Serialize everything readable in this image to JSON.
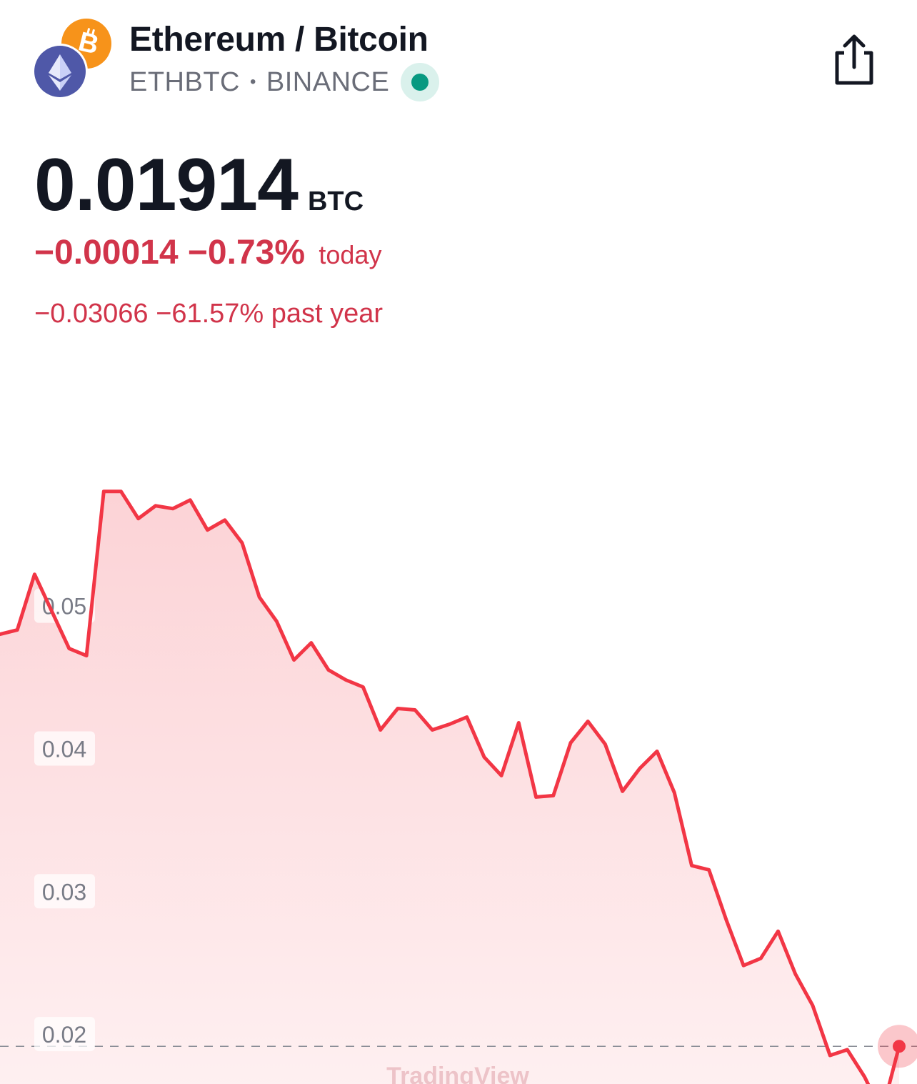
{
  "header": {
    "title": "Ethereum / Bitcoin",
    "symbol": "ETHBTC",
    "separator": "•",
    "exchange": "BINANCE",
    "logos": [
      "ethereum-logo",
      "bitcoin-logo"
    ],
    "market_status_color": "#089981"
  },
  "quote": {
    "price": "0.01914",
    "currency": "BTC",
    "today_change_abs": "−0.00014",
    "today_change_pct": "−0.73%",
    "today_label": "today",
    "year_change_abs": "−0.03066",
    "year_change_pct": "−61.57%",
    "year_label": "past year",
    "negative_color": "#d1344a"
  },
  "icons": {
    "share": "share-icon"
  },
  "watermark": "TradingView",
  "chart_data": {
    "type": "area",
    "ylim": [
      0.0165,
      0.0684
    ],
    "y_ticks": [
      "0.05",
      "0.04",
      "0.03",
      "0.02"
    ],
    "y_tick_values": [
      0.05,
      0.04,
      0.03,
      0.02
    ],
    "reference_line": 0.01914,
    "line_color": "#f23645",
    "grid": false,
    "values": [
      0.048,
      0.0483,
      0.0522,
      0.0496,
      0.047,
      0.0465,
      0.058,
      0.058,
      0.0561,
      0.057,
      0.0568,
      0.0574,
      0.0553,
      0.056,
      0.0544,
      0.0506,
      0.0489,
      0.0462,
      0.0474,
      0.0455,
      0.0448,
      0.0443,
      0.0413,
      0.0428,
      0.0427,
      0.0413,
      0.0417,
      0.0422,
      0.0394,
      0.0381,
      0.0418,
      0.0366,
      0.0367,
      0.0404,
      0.0419,
      0.0403,
      0.037,
      0.0386,
      0.0398,
      0.0369,
      0.0318,
      0.0315,
      0.028,
      0.0248,
      0.0253,
      0.0272,
      0.0242,
      0.022,
      0.0185,
      0.0189,
      0.017,
      0.0145,
      0.01914
    ]
  }
}
